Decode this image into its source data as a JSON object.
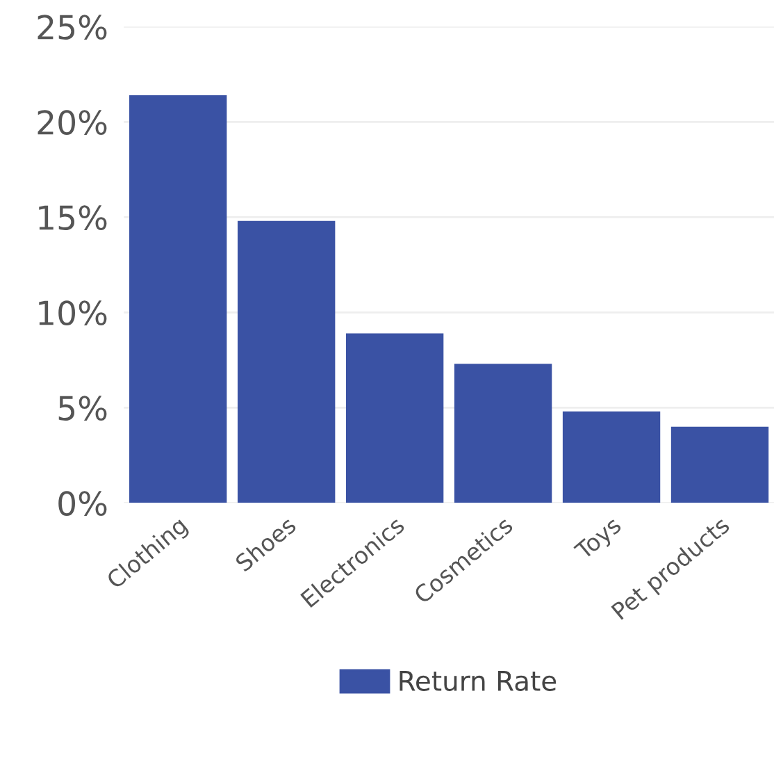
{
  "chart_data": {
    "type": "bar",
    "categories": [
      "Clothing",
      "Shoes",
      "Electronics",
      "Cosmetics",
      "Toys",
      "Pet products"
    ],
    "series": [
      {
        "name": "Return Rate",
        "color": "#3a52a4",
        "values": [
          21.4,
          14.8,
          8.9,
          7.3,
          4.8,
          4.0
        ]
      }
    ],
    "ylim": [
      0,
      25
    ],
    "yticks": [
      {
        "value": 0,
        "label": "0%"
      },
      {
        "value": 5,
        "label": "5%"
      },
      {
        "value": 10,
        "label": "10%"
      },
      {
        "value": 15,
        "label": "15%"
      },
      {
        "value": 20,
        "label": "20%"
      },
      {
        "value": 25,
        "label": "25%"
      }
    ],
    "grid": "y",
    "legend": "bottom"
  }
}
